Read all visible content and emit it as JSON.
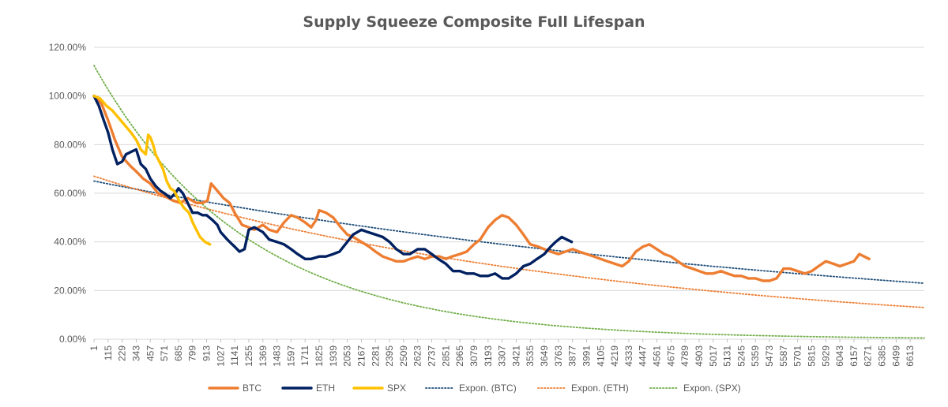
{
  "chart_data": {
    "type": "line",
    "title": "Supply Squeeze Composite Full Lifespan",
    "xlabel": "",
    "ylabel": "",
    "xlim": [
      1,
      6727
    ],
    "ylim": [
      0,
      1.2
    ],
    "y_ticks": [
      "0.00%",
      "20.00%",
      "40.00%",
      "60.00%",
      "80.00%",
      "100.00%",
      "120.00%"
    ],
    "x_ticks": [
      1,
      115,
      229,
      343,
      457,
      571,
      685,
      799,
      913,
      1027,
      1141,
      1255,
      1369,
      1483,
      1597,
      1711,
      1825,
      1939,
      2053,
      2167,
      2281,
      2395,
      2509,
      2623,
      2737,
      2851,
      2965,
      3079,
      3193,
      3307,
      3421,
      3535,
      3649,
      3763,
      3877,
      3991,
      4105,
      4219,
      4333,
      4447,
      4561,
      4675,
      4789,
      4903,
      5017,
      5131,
      5245,
      5359,
      5473,
      5587,
      5701,
      5815,
      5929,
      6043,
      6157,
      6271,
      6385,
      6499,
      6613
    ],
    "grid": "horizontal",
    "legend": "bottom",
    "colors": {
      "BTC": "#ED7D31",
      "ETH": "#002060",
      "SPX": "#FFC000",
      "Expon. (BTC)": "#1F4E79",
      "Expon. (ETH)": "#ED7D31",
      "Expon. (SPX)": "#70AD47"
    },
    "series": [
      {
        "name": "BTC",
        "x": [
          1,
          60,
          115,
          170,
          229,
          300,
          343,
          400,
          457,
          520,
          571,
          640,
          700,
          760,
          830,
          880,
          920,
          950,
          1000,
          1050,
          1100,
          1140,
          1200,
          1255,
          1300,
          1369,
          1420,
          1483,
          1540,
          1597,
          1650,
          1711,
          1760,
          1800,
          1825,
          1880,
          1939,
          2000,
          2053,
          2100,
          2167,
          2230,
          2281,
          2340,
          2395,
          2450,
          2509,
          2560,
          2623,
          2680,
          2737,
          2800,
          2851,
          2900,
          2965,
          3020,
          3079,
          3130,
          3193,
          3250,
          3307,
          3360,
          3421,
          3480,
          3535,
          3600,
          3649,
          3700,
          3763,
          3820,
          3877,
          3930,
          3991,
          4050,
          4105,
          4160,
          4219,
          4280,
          4333,
          4390,
          4447,
          4500,
          4561,
          4620,
          4675,
          4730,
          4789,
          4850,
          4903,
          4960,
          5017,
          5080,
          5131,
          5190,
          5245,
          5300,
          5359,
          5420,
          5473,
          5530,
          5587,
          5640,
          5701,
          5760,
          5815,
          5870,
          5929,
          5990,
          6043,
          6100,
          6157,
          6200,
          6240,
          6280
        ],
        "y": [
          1.0,
          0.97,
          0.9,
          0.82,
          0.75,
          0.71,
          0.69,
          0.66,
          0.64,
          0.6,
          0.59,
          0.57,
          0.56,
          0.58,
          0.56,
          0.56,
          0.57,
          0.64,
          0.61,
          0.58,
          0.56,
          0.52,
          0.47,
          0.46,
          0.45,
          0.47,
          0.45,
          0.44,
          0.48,
          0.51,
          0.5,
          0.48,
          0.46,
          0.49,
          0.53,
          0.52,
          0.5,
          0.46,
          0.43,
          0.42,
          0.4,
          0.38,
          0.36,
          0.34,
          0.33,
          0.32,
          0.32,
          0.33,
          0.34,
          0.33,
          0.34,
          0.34,
          0.33,
          0.34,
          0.35,
          0.36,
          0.39,
          0.41,
          0.46,
          0.49,
          0.51,
          0.5,
          0.47,
          0.43,
          0.39,
          0.38,
          0.37,
          0.36,
          0.35,
          0.36,
          0.37,
          0.36,
          0.35,
          0.34,
          0.33,
          0.32,
          0.31,
          0.3,
          0.32,
          0.36,
          0.38,
          0.39,
          0.37,
          0.35,
          0.34,
          0.32,
          0.3,
          0.29,
          0.28,
          0.27,
          0.27,
          0.28,
          0.27,
          0.26,
          0.26,
          0.25,
          0.25,
          0.24,
          0.24,
          0.25,
          0.29,
          0.29,
          0.28,
          0.27,
          0.28,
          0.3,
          0.32,
          0.31,
          0.3,
          0.31,
          0.32,
          0.35,
          0.34,
          0.33
        ]
      },
      {
        "name": "ETH",
        "x": [
          1,
          40,
          80,
          115,
          150,
          190,
          229,
          260,
          300,
          343,
          380,
          420,
          457,
          500,
          540,
          571,
          620,
          660,
          685,
          720,
          760,
          799,
          840,
          880,
          913,
          960,
          1000,
          1027,
          1080,
          1120,
          1141,
          1180,
          1220,
          1255,
          1300,
          1369,
          1420,
          1483,
          1540,
          1597,
          1650,
          1711,
          1760,
          1825,
          1880,
          1939,
          1990,
          2053,
          2100,
          2167,
          2220,
          2281,
          2340,
          2395,
          2450,
          2509,
          2560,
          2623,
          2680,
          2737,
          2790,
          2851,
          2910,
          2965,
          3020,
          3079,
          3130,
          3193,
          3250,
          3307,
          3360,
          3421,
          3480,
          3535,
          3590,
          3649,
          3700,
          3740,
          3790,
          3830,
          3870
        ],
        "y": [
          1.0,
          0.96,
          0.9,
          0.85,
          0.78,
          0.72,
          0.73,
          0.76,
          0.77,
          0.78,
          0.72,
          0.7,
          0.66,
          0.63,
          0.61,
          0.6,
          0.58,
          0.6,
          0.62,
          0.6,
          0.56,
          0.52,
          0.52,
          0.51,
          0.51,
          0.49,
          0.47,
          0.44,
          0.41,
          0.39,
          0.38,
          0.36,
          0.37,
          0.45,
          0.46,
          0.44,
          0.41,
          0.4,
          0.39,
          0.37,
          0.35,
          0.33,
          0.33,
          0.34,
          0.34,
          0.35,
          0.36,
          0.4,
          0.43,
          0.45,
          0.44,
          0.43,
          0.42,
          0.4,
          0.37,
          0.35,
          0.35,
          0.37,
          0.37,
          0.35,
          0.33,
          0.31,
          0.28,
          0.28,
          0.27,
          0.27,
          0.26,
          0.26,
          0.27,
          0.25,
          0.25,
          0.27,
          0.3,
          0.31,
          0.33,
          0.35,
          0.38,
          0.4,
          0.42,
          0.41,
          0.4
        ]
      },
      {
        "name": "SPX",
        "x": [
          1,
          50,
          100,
          150,
          200,
          250,
          300,
          343,
          380,
          420,
          440,
          457,
          480,
          500,
          530,
          560,
          590,
          620,
          650,
          690,
          730,
          770,
          800,
          830,
          860,
          900,
          940
        ],
        "y": [
          1.0,
          0.99,
          0.96,
          0.94,
          0.91,
          0.88,
          0.85,
          0.82,
          0.78,
          0.76,
          0.84,
          0.83,
          0.8,
          0.76,
          0.73,
          0.7,
          0.65,
          0.62,
          0.61,
          0.57,
          0.54,
          0.52,
          0.48,
          0.45,
          0.42,
          0.4,
          0.39
        ]
      },
      {
        "name": "Expon. (BTC)",
        "fit": "exponential",
        "y_at_start": 0.65,
        "y_at_end": 0.23
      },
      {
        "name": "Expon. (ETH)",
        "fit": "exponential",
        "y_at_start": 0.67,
        "y_at_end": 0.13
      },
      {
        "name": "Expon. (SPX)",
        "fit": "exponential",
        "y_at_start": 1.125,
        "y_at_end": 0.005
      }
    ]
  }
}
